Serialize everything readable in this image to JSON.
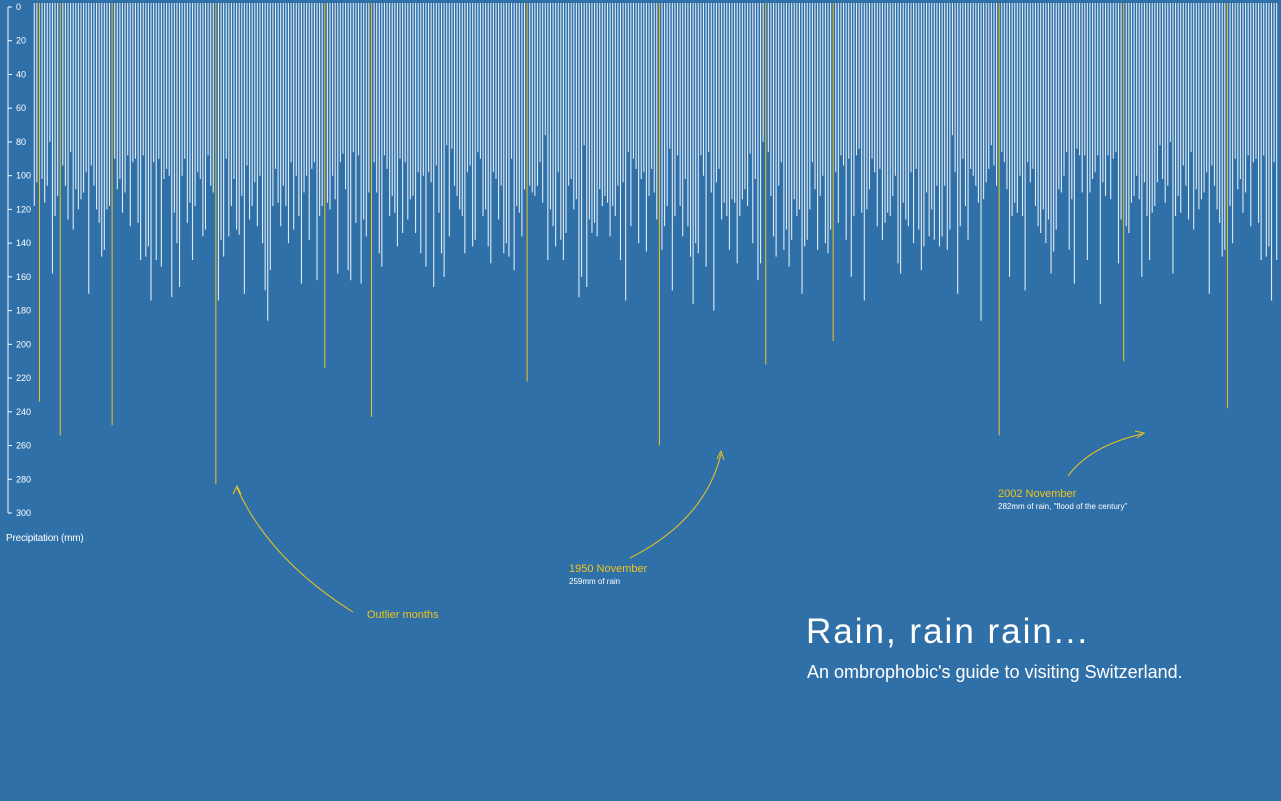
{
  "page": {
    "title": "Rain, rain rain...",
    "subtitle": "An ombrophobic's guide to visiting Switzerland."
  },
  "chart_data": {
    "type": "bar",
    "orientation": "downward",
    "ylabel": "Precipitation (mm)",
    "ylim": [
      0,
      300
    ],
    "yticks": [
      0,
      20,
      40,
      60,
      80,
      100,
      120,
      140,
      160,
      180,
      200,
      220,
      240,
      260,
      280,
      300
    ],
    "grid": false,
    "colors": {
      "background": "#3070a9",
      "ordinary": "#ffffff",
      "outlier": "#f0c419"
    },
    "series": [
      {
        "values": [
          118,
          92,
          145,
          135,
          76,
          128,
          160,
          104,
          87,
          132,
          112,
          98,
          150,
          124,
          82,
          140,
          108,
          96,
          170,
          120,
          88,
          136,
          102,
          156,
          110,
          94,
          130,
          148,
          84,
          116,
          162,
          100,
          126,
          90,
          142,
          122,
          106,
          152,
          86,
          134,
          118,
          98,
          174,
          112,
          80,
          128,
          144,
          104,
          138,
          92,
          120,
          158,
          88,
          114,
          130,
          96,
          150,
          108,
          124,
          86,
          164,
          118,
          100,
          134,
          90,
          146,
          112,
          126,
          84,
          140,
          106,
          154,
          98,
          122,
          136,
          88,
          168,
          116,
          102,
          130,
          94,
          148,
          110,
          124,
          186,
          120,
          96,
          142,
          106,
          132,
          88,
          156,
          114,
          100,
          138,
          126,
          92,
          150,
          118,
          104,
          172,
          128,
          86,
          144,
          110,
          136,
          96,
          160,
          122,
          90,
          132,
          146,
          102,
          116,
          82,
          140,
          124,
          108,
          154,
          98,
          130,
          94,
          166,
          112,
          120,
          138,
          88,
          148,
          106,
          126,
          100,
          142,
          114,
          96,
          176,
          118,
          134,
          90,
          152,
          110,
          124,
          104,
          140,
          86,
          128,
          158,
          98,
          120,
          112,
          146,
          92,
          136,
          116,
          102,
          170,
          122,
          88,
          132,
          108,
          150,
          126,
          94,
          142,
          114,
          100,
          160,
          118,
          130,
          106,
          138,
          90,
          154,
          124,
          112,
          98,
          146,
          120,
          134,
          86,
          164,
          116,
          102,
          140,
          128,
          92,
          152,
          110,
          122,
          136,
          96,
          148,
          108,
          126,
          180,
          100,
          118,
          132,
          90,
          144,
          114,
          104,
          138,
          124,
          88,
          156,
          120,
          112,
          130,
          96,
          168,
          106,
          142,
          118,
          100,
          134,
          126,
          92,
          150,
          110,
          122,
          140,
          98,
          116,
          162,
          104,
          128,
          136,
          90,
          146,
          112,
          124,
          96,
          174,
          120,
          108,
          132,
          100,
          144,
          118,
          86,
          138,
          126,
          102,
          154,
          114,
          92,
          130,
          148,
          106,
          122,
          98,
          160,
          116,
          134,
          90,
          142,
          110,
          128,
          104,
          152,
          120,
          96,
          136,
          112,
          88,
          166,
          124,
          100,
          140,
          118,
          106,
          130,
          94,
          150,
          114,
          126,
          102,
          144,
          92,
          138,
          122,
          108,
          158,
          98,
          132,
          116,
          90,
          146
        ],
        "outliers": [
          {
            "index": 2,
            "value": 234
          },
          {
            "index": 10,
            "value": 254
          },
          {
            "index": 30,
            "value": 248
          },
          {
            "index": 70,
            "value": 283
          },
          {
            "index": 112,
            "value": 214
          },
          {
            "index": 130,
            "value": 243
          },
          {
            "index": 190,
            "value": 222
          },
          {
            "index": 241,
            "value": 260
          },
          {
            "index": 282,
            "value": 212
          },
          {
            "index": 308,
            "value": 198
          },
          {
            "index": 372,
            "value": 254
          },
          {
            "index": 420,
            "value": 210
          },
          {
            "index": 460,
            "value": 238
          }
        ]
      }
    ],
    "annotations": [
      {
        "title": "Outlier months",
        "text": ""
      },
      {
        "title": "1950 November",
        "text": "259mm of rain"
      },
      {
        "title": "2002 November",
        "text": "282mm of rain, \"flood of the century\""
      }
    ]
  }
}
